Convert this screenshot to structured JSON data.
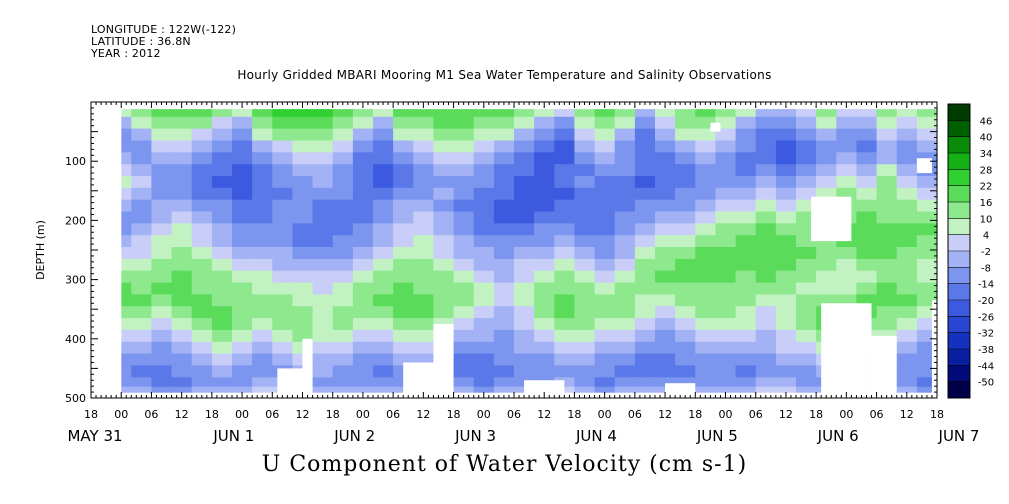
{
  "header": {
    "longitude": "LONGITUDE : 122W(-122)",
    "latitude": "LATITUDE : 36.8N",
    "year": "YEAR : 2012",
    "dataset_title": "Hourly Gridded MBARI Mooring M1 Sea Water Temperature and Salinity Observations"
  },
  "chart_data": {
    "type": "heatmap",
    "title": "U Component of Water Velocity (cm s-1)",
    "variable": "U Component of Water Velocity",
    "units": "cm s-1",
    "xlabel": "",
    "ylabel": "DEPTH (m)",
    "ylim": [
      500,
      0
    ],
    "y_ticks": [
      100,
      200,
      300,
      400,
      500
    ],
    "x_range_hours": [
      "2012-05-31 18:00",
      "2012-06-07 18:00"
    ],
    "x_hour_ticks": [
      "18",
      "00",
      "06",
      "12",
      "18",
      "00",
      "06",
      "12",
      "18",
      "00",
      "06",
      "12",
      "18",
      "00",
      "06",
      "12",
      "18",
      "00",
      "06",
      "12",
      "18",
      "00",
      "06",
      "12",
      "18",
      "00",
      "06",
      "12",
      "18"
    ],
    "x_day_labels": [
      "MAY 31",
      "JUN  1",
      "JUN  2",
      "JUN  3",
      "JUN  4",
      "JUN  5",
      "JUN  6",
      "JUN  7"
    ],
    "x_day_label_hours": [
      0,
      24,
      48,
      72,
      96,
      120,
      144,
      168
    ],
    "colorbar": {
      "levels": [
        -50,
        -44,
        -38,
        -32,
        -26,
        -20,
        -14,
        -8,
        -2,
        4,
        10,
        16,
        22,
        28,
        34,
        40,
        46
      ],
      "tick_labels": [
        "46",
        "40",
        "34",
        "28",
        "22",
        "16",
        "10",
        "4",
        "-2",
        "-8",
        "-14",
        "-20",
        "-26",
        "-32",
        "-38",
        "-44",
        "-50"
      ],
      "colors_low_to_high": [
        "#00004a",
        "#000a78",
        "#0a1ea0",
        "#1432be",
        "#2846d2",
        "#3c5ae0",
        "#5a78e8",
        "#7c96f0",
        "#a2b2f4",
        "#c8cef8",
        "#c2f2c2",
        "#8ee88e",
        "#5adc5a",
        "#30d030",
        "#14b014",
        "#0a8c0a",
        "#006000",
        "#003c00"
      ]
    },
    "time_columns_hours": [
      6,
      10,
      14,
      18,
      22,
      26,
      30,
      34,
      38,
      42,
      46,
      50,
      54,
      58,
      62,
      66,
      70,
      74,
      78,
      82,
      86,
      90,
      94,
      98,
      102,
      106,
      110,
      114,
      118,
      122,
      126,
      130,
      134,
      138,
      142,
      146,
      150,
      154,
      158,
      162,
      166
    ],
    "depth_rows_m": [
      15,
      35,
      55,
      75,
      95,
      115,
      135,
      155,
      175,
      195,
      215,
      235,
      255,
      275,
      295,
      315,
      335,
      355,
      375,
      395,
      415,
      435,
      455,
      475,
      487
    ],
    "u_values": [
      [
        4,
        10,
        16,
        16,
        16,
        10,
        4,
        16,
        22,
        22,
        22,
        16,
        10,
        4,
        16,
        16,
        16,
        16,
        16,
        16,
        10,
        4,
        -2,
        10,
        16,
        10,
        -8,
        4,
        10,
        16,
        10,
        4,
        -8,
        -8,
        -2,
        10,
        -2,
        -2,
        10,
        4,
        10
      ],
      [
        -8,
        4,
        10,
        10,
        10,
        -2,
        -8,
        10,
        16,
        16,
        16,
        10,
        4,
        -8,
        10,
        10,
        16,
        16,
        10,
        10,
        4,
        -8,
        -14,
        4,
        10,
        4,
        -14,
        -2,
        10,
        10,
        4,
        -8,
        -14,
        -14,
        -8,
        4,
        -8,
        -8,
        4,
        -2,
        4
      ],
      [
        -14,
        -8,
        4,
        4,
        -2,
        -8,
        -14,
        4,
        10,
        10,
        10,
        4,
        -8,
        -14,
        4,
        4,
        10,
        10,
        4,
        4,
        -8,
        -14,
        -20,
        -2,
        4,
        -8,
        -20,
        -8,
        4,
        4,
        -2,
        -14,
        -20,
        -20,
        -14,
        -8,
        -14,
        -14,
        -2,
        -8,
        -2
      ],
      [
        -14,
        -14,
        -2,
        -2,
        -8,
        -14,
        -20,
        -8,
        -2,
        4,
        4,
        -2,
        -14,
        -20,
        -8,
        -2,
        4,
        4,
        -2,
        -8,
        -14,
        -20,
        -26,
        -8,
        -2,
        -14,
        -20,
        -14,
        -8,
        -2,
        -8,
        -14,
        -20,
        -26,
        -20,
        -14,
        -14,
        -20,
        -8,
        -14,
        -8
      ],
      [
        -8,
        -14,
        -8,
        -8,
        -14,
        -20,
        -20,
        -14,
        -8,
        -2,
        -2,
        -8,
        -20,
        -20,
        -14,
        -8,
        -2,
        -2,
        -8,
        -14,
        -20,
        -26,
        -26,
        -14,
        -8,
        -14,
        -20,
        -20,
        -14,
        -8,
        -14,
        -20,
        -20,
        -26,
        -20,
        -14,
        -8,
        -14,
        -8,
        -14,
        -14
      ],
      [
        -2,
        -8,
        -14,
        -14,
        -20,
        -20,
        -26,
        -20,
        -14,
        -8,
        -8,
        -14,
        -20,
        -26,
        -20,
        -14,
        -8,
        -8,
        -14,
        -20,
        -20,
        -26,
        -20,
        -20,
        -14,
        -14,
        -20,
        -20,
        -20,
        -14,
        -14,
        -20,
        -14,
        -20,
        -14,
        -8,
        -2,
        -8,
        4,
        -8,
        -14
      ],
      [
        4,
        -2,
        -14,
        -14,
        -20,
        -26,
        -26,
        -20,
        -14,
        -14,
        -8,
        -14,
        -20,
        -26,
        -20,
        -14,
        -14,
        -14,
        -14,
        -20,
        -26,
        -26,
        -20,
        -14,
        -20,
        -20,
        -26,
        -20,
        -20,
        -14,
        -14,
        -14,
        -8,
        -14,
        -8,
        -2,
        4,
        -2,
        10,
        -2,
        -8
      ],
      [
        -2,
        -8,
        -14,
        -14,
        -20,
        -20,
        -26,
        -20,
        -20,
        -14,
        -14,
        -14,
        -20,
        -20,
        -14,
        -14,
        -8,
        -14,
        -20,
        -20,
        -26,
        -26,
        -26,
        -20,
        -20,
        -20,
        -20,
        -20,
        -14,
        -14,
        -8,
        -8,
        -2,
        -8,
        -2,
        4,
        10,
        4,
        10,
        4,
        -2
      ],
      [
        -8,
        -14,
        -8,
        -8,
        -14,
        -14,
        -20,
        -20,
        -14,
        -14,
        -20,
        -20,
        -20,
        -14,
        -8,
        -8,
        -14,
        -20,
        -20,
        -26,
        -26,
        -26,
        -20,
        -20,
        -20,
        -20,
        -14,
        -14,
        -14,
        -8,
        -2,
        -2,
        4,
        -2,
        4,
        10,
        10,
        10,
        10,
        10,
        4
      ],
      [
        -14,
        -14,
        -8,
        -2,
        -8,
        -14,
        -20,
        -20,
        -14,
        -14,
        -20,
        -20,
        -20,
        -14,
        -8,
        -2,
        -8,
        -14,
        -20,
        -26,
        -26,
        -20,
        -20,
        -20,
        -20,
        -14,
        -14,
        -8,
        -8,
        -2,
        4,
        4,
        10,
        4,
        10,
        16,
        10,
        16,
        10,
        10,
        10
      ],
      [
        -14,
        -8,
        -2,
        4,
        -2,
        -8,
        -14,
        -14,
        -14,
        -20,
        -20,
        -20,
        -14,
        -8,
        -2,
        -2,
        -8,
        -14,
        -20,
        -20,
        -20,
        -14,
        -14,
        -20,
        -20,
        -14,
        -8,
        -2,
        -2,
        4,
        10,
        10,
        16,
        10,
        10,
        16,
        16,
        16,
        16,
        16,
        16
      ],
      [
        -8,
        -2,
        4,
        4,
        -2,
        -8,
        -14,
        -14,
        -14,
        -20,
        -20,
        -14,
        -14,
        -8,
        -2,
        4,
        -2,
        -8,
        -14,
        -14,
        -14,
        -14,
        -8,
        -14,
        -14,
        -8,
        -2,
        4,
        4,
        10,
        10,
        16,
        16,
        16,
        10,
        10,
        16,
        16,
        16,
        16,
        10
      ],
      [
        -2,
        -2,
        4,
        10,
        4,
        -2,
        -8,
        -8,
        -8,
        -14,
        -14,
        -14,
        -8,
        -2,
        4,
        4,
        -2,
        -8,
        -8,
        -14,
        -8,
        -8,
        -2,
        -8,
        -14,
        -8,
        4,
        10,
        10,
        16,
        16,
        16,
        16,
        16,
        16,
        10,
        10,
        16,
        16,
        10,
        10
      ],
      [
        4,
        4,
        10,
        10,
        10,
        4,
        -2,
        -2,
        -8,
        -8,
        -8,
        -8,
        -2,
        4,
        10,
        10,
        4,
        -2,
        -8,
        -8,
        -2,
        -2,
        4,
        -2,
        -8,
        -2,
        10,
        10,
        16,
        16,
        16,
        16,
        16,
        16,
        10,
        10,
        4,
        10,
        10,
        10,
        4
      ],
      [
        10,
        10,
        10,
        16,
        10,
        10,
        4,
        4,
        -2,
        -2,
        -2,
        -2,
        4,
        10,
        10,
        10,
        10,
        4,
        -2,
        -8,
        -2,
        4,
        10,
        4,
        -2,
        4,
        10,
        16,
        16,
        16,
        16,
        10,
        16,
        10,
        10,
        4,
        4,
        4,
        10,
        10,
        4
      ],
      [
        16,
        10,
        16,
        16,
        10,
        10,
        10,
        4,
        4,
        4,
        -2,
        4,
        10,
        10,
        16,
        10,
        10,
        10,
        4,
        -2,
        4,
        10,
        10,
        10,
        4,
        10,
        10,
        10,
        10,
        10,
        10,
        10,
        10,
        10,
        4,
        4,
        4,
        10,
        16,
        10,
        10
      ],
      [
        16,
        16,
        10,
        16,
        16,
        10,
        10,
        10,
        10,
        4,
        4,
        4,
        10,
        16,
        16,
        16,
        10,
        10,
        4,
        -2,
        4,
        10,
        16,
        10,
        10,
        10,
        4,
        4,
        10,
        10,
        10,
        10,
        4,
        4,
        10,
        10,
        10,
        16,
        16,
        16,
        10
      ],
      [
        10,
        10,
        4,
        10,
        16,
        16,
        10,
        10,
        10,
        10,
        4,
        10,
        10,
        10,
        16,
        16,
        10,
        4,
        -2,
        -8,
        -2,
        10,
        16,
        10,
        10,
        10,
        4,
        -2,
        4,
        10,
        10,
        4,
        -2,
        4,
        10,
        16,
        16,
        16,
        10,
        10,
        4
      ],
      [
        4,
        4,
        -2,
        4,
        10,
        16,
        10,
        4,
        10,
        10,
        4,
        10,
        4,
        4,
        10,
        10,
        4,
        -2,
        -8,
        -8,
        -2,
        4,
        10,
        10,
        4,
        4,
        -2,
        -8,
        -2,
        4,
        4,
        4,
        -2,
        4,
        10,
        16,
        16,
        10,
        10,
        4,
        -2
      ],
      [
        -2,
        -2,
        -8,
        -2,
        4,
        10,
        4,
        -2,
        4,
        10,
        4,
        4,
        -2,
        -2,
        4,
        4,
        -2,
        -8,
        -8,
        -14,
        -8,
        -2,
        4,
        4,
        -2,
        -2,
        -8,
        -14,
        -8,
        -2,
        -2,
        -2,
        -8,
        -2,
        4,
        10,
        10,
        4,
        4,
        -2,
        -8
      ],
      [
        -8,
        -8,
        -14,
        -8,
        -2,
        4,
        -2,
        -8,
        -2,
        4,
        -2,
        -2,
        -8,
        -8,
        -2,
        -2,
        -8,
        -14,
        -14,
        -14,
        -8,
        -8,
        -2,
        -2,
        -8,
        -8,
        -14,
        -14,
        -14,
        -8,
        -8,
        -8,
        -8,
        -2,
        -2,
        4,
        4,
        -2,
        -2,
        -8,
        -14
      ],
      [
        -14,
        -14,
        -14,
        -14,
        -8,
        -2,
        -8,
        -14,
        -8,
        -2,
        -8,
        -8,
        -14,
        -14,
        -8,
        -8,
        -14,
        -20,
        -20,
        -14,
        -14,
        -14,
        -8,
        -8,
        -14,
        -14,
        -20,
        -20,
        -14,
        -14,
        -14,
        -14,
        -14,
        -8,
        -8,
        -2,
        -2,
        -8,
        -8,
        -14,
        -14
      ],
      [
        -14,
        -20,
        -20,
        -14,
        -14,
        -8,
        -14,
        -14,
        -14,
        -8,
        -8,
        -14,
        -14,
        -20,
        -14,
        -14,
        -20,
        -20,
        -20,
        -20,
        -14,
        -14,
        -14,
        -14,
        -14,
        -20,
        -20,
        -20,
        -20,
        -14,
        -14,
        -20,
        -14,
        -14,
        -14,
        -8,
        -8,
        -14,
        -14,
        -14,
        -14
      ],
      [
        -14,
        -14,
        -20,
        -20,
        -14,
        -14,
        -14,
        -8,
        -8,
        -8,
        -14,
        -14,
        -14,
        -14,
        -14,
        -14,
        -14,
        -14,
        -20,
        -14,
        -14,
        -14,
        -8,
        -14,
        -20,
        -14,
        -14,
        -14,
        -14,
        -14,
        -14,
        -14,
        -8,
        -8,
        -14,
        -14,
        -14,
        -14,
        -14,
        -14,
        -20
      ],
      [
        -8,
        -8,
        -14,
        -14,
        -8,
        -8,
        -8,
        -2,
        -2,
        -2,
        -8,
        -8,
        -8,
        -8,
        -8,
        -8,
        -8,
        -8,
        -14,
        -8,
        -8,
        -8,
        -2,
        -8,
        -14,
        -8,
        -8,
        -8,
        -8,
        -8,
        -8,
        -8,
        -2,
        -2,
        -8,
        -8,
        -8,
        -8,
        -8,
        -8,
        -14
      ]
    ],
    "no_data_regions": [
      {
        "hours": [
          0,
          6
        ],
        "depth_m": [
          0,
          500
        ]
      },
      {
        "hours": [
          37,
          42
        ],
        "depth_m": [
          450,
          500
        ]
      },
      {
        "hours": [
          42,
          44
        ],
        "depth_m": [
          400,
          500
        ]
      },
      {
        "hours": [
          62,
          70
        ],
        "depth_m": [
          440,
          500
        ]
      },
      {
        "hours": [
          68,
          72
        ],
        "depth_m": [
          375,
          500
        ]
      },
      {
        "hours": [
          86,
          94
        ],
        "depth_m": [
          470,
          500
        ]
      },
      {
        "hours": [
          114,
          120
        ],
        "depth_m": [
          475,
          500
        ]
      },
      {
        "hours": [
          123,
          125
        ],
        "depth_m": [
          35,
          50
        ]
      },
      {
        "hours": [
          143,
          151
        ],
        "depth_m": [
          160,
          235
        ]
      },
      {
        "hours": [
          145,
          155
        ],
        "depth_m": [
          340,
          500
        ]
      },
      {
        "hours": [
          155,
          160
        ],
        "depth_m": [
          395,
          500
        ]
      },
      {
        "hours": [
          164,
          167
        ],
        "depth_m": [
          95,
          120
        ]
      },
      {
        "hours": [
          170,
          174
        ],
        "depth_m": [
          100,
          260
        ]
      },
      {
        "hours": [
          167,
          176
        ],
        "depth_m": [
          335,
          500
        ]
      },
      {
        "hours": [
          175,
          184
        ],
        "depth_m": [
          310,
          460
        ]
      }
    ],
    "grid": false,
    "legend": "colorbar-right"
  }
}
